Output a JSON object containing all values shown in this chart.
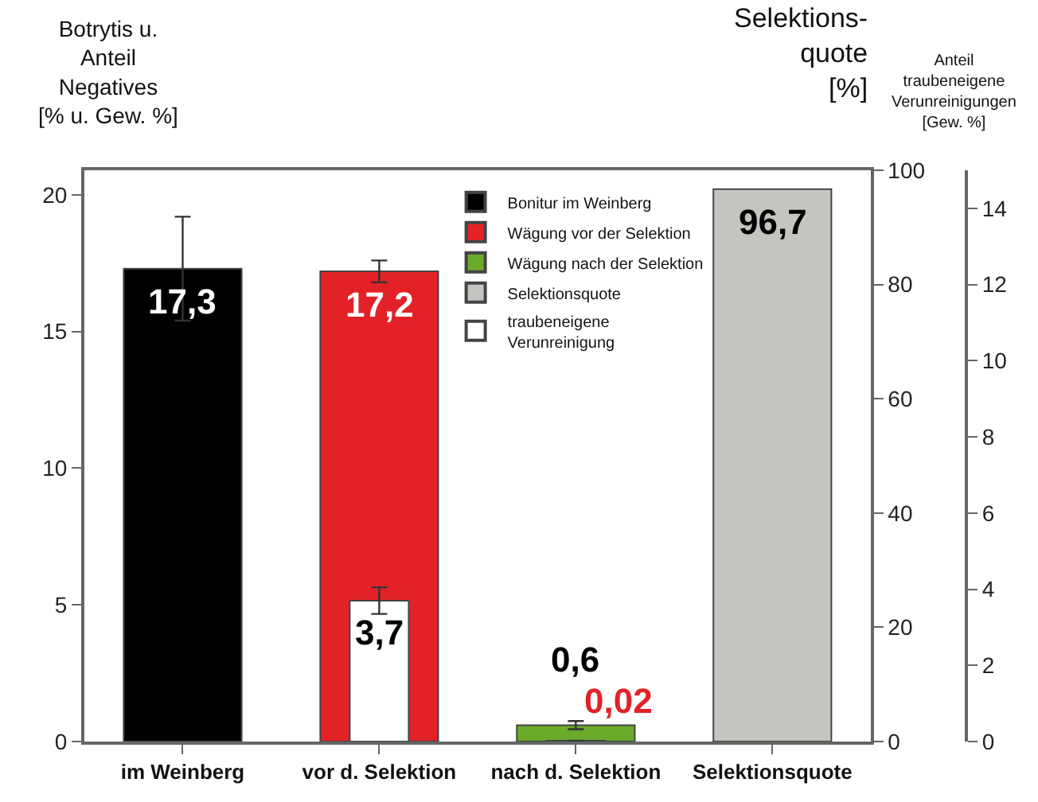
{
  "chart_data": {
    "type": "bar",
    "ylabel": "Botrytis u.\nAnteil\nNegatives\n[% u. Gew. %]",
    "y2label": "Selektions-\nquote\n[%]",
    "y3label": "Anteil\ntraubeneigene\nVerunreinigungen\n[Gew. %]",
    "categories": [
      "im Weinberg",
      "vor d. Selektion",
      "nach d. Selektion",
      "Selektionsquote"
    ],
    "series": [
      {
        "name": "Bonitur im Weinberg",
        "color": "#000000",
        "values": [
          17.3,
          null,
          null,
          null
        ],
        "errors": [
          1.9,
          null,
          null,
          null
        ],
        "value_labels": [
          "17,3",
          null,
          null,
          null
        ]
      },
      {
        "name": "Wägung vor der Selektion",
        "color": "#e32227",
        "values": [
          null,
          17.2,
          null,
          null
        ],
        "errors": [
          null,
          0.4,
          null,
          null
        ],
        "value_labels": [
          null,
          "17,2",
          null,
          null
        ]
      },
      {
        "name": "Wägung nach der Selektion",
        "color": "#6aaa2a",
        "values": [
          null,
          null,
          0.6,
          null
        ],
        "errors": [
          null,
          null,
          0.15,
          null
        ],
        "value_labels": [
          null,
          null,
          "0,6",
          null
        ]
      },
      {
        "name": "Selektionsquote",
        "color": "#c4c4c0",
        "axis": "y2",
        "values": [
          null,
          null,
          null,
          96.7
        ],
        "value_labels": [
          null,
          null,
          null,
          "96,7"
        ]
      },
      {
        "name": "traubeneigene\nVerunreinigung",
        "color": "#ffffff",
        "axis": "y3",
        "values": [
          null,
          3.7,
          0.02,
          null
        ],
        "errors": [
          null,
          0.35,
          null,
          null
        ],
        "value_labels": [
          null,
          "3,7",
          "0,02",
          null
        ]
      }
    ],
    "ylim": [
      0,
      20.9
    ],
    "yticks": [
      0,
      5,
      10,
      15,
      20
    ],
    "y2lim": [
      0,
      100
    ],
    "y2ticks": [
      0,
      20,
      40,
      60,
      80,
      100
    ],
    "y3lim": [
      0,
      15
    ],
    "y3ticks": [
      0,
      2,
      4,
      6,
      8,
      10,
      12,
      14
    ],
    "legend": "top"
  }
}
